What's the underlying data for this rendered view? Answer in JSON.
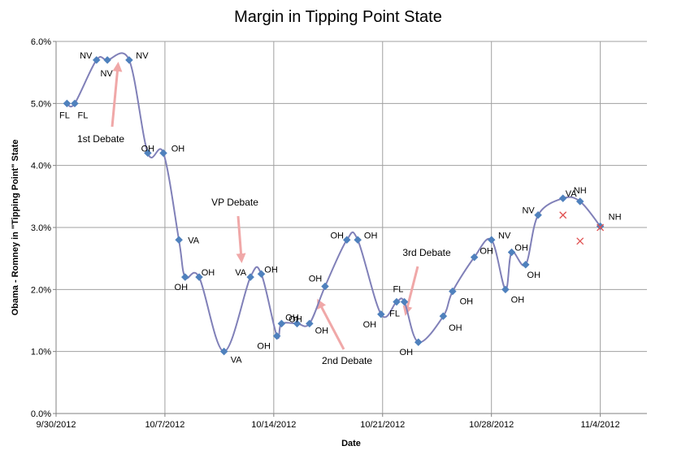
{
  "chart_data": {
    "type": "line",
    "title": "Margin in Tipping Point State",
    "xlabel": "Date",
    "ylabel": "Obama - Romney in \"Tipping Point\" State",
    "x_axis": {
      "start": "2012-09-30",
      "end": "2012-11-07",
      "ticks": [
        {
          "date": "2012-09-30",
          "label": "9/30/2012"
        },
        {
          "date": "2012-10-07",
          "label": "10/7/2012"
        },
        {
          "date": "2012-10-14",
          "label": "10/14/2012"
        },
        {
          "date": "2012-10-21",
          "label": "10/21/2012"
        },
        {
          "date": "2012-10-28",
          "label": "10/28/2012"
        },
        {
          "date": "2012-11-04",
          "label": "11/4/2012"
        }
      ]
    },
    "ylim": [
      0,
      6
    ],
    "y_ticks": [
      "0.0%",
      "1.0%",
      "2.0%",
      "3.0%",
      "4.0%",
      "5.0%",
      "6.0%"
    ],
    "grid": true,
    "colors": {
      "line": "#8080b8",
      "marker": "#4f81bd",
      "cross": "#e05050",
      "arrow": "#f0a8a8",
      "grid": "#a0a0a0"
    },
    "series": [
      {
        "points": [
          {
            "date": "2012-09-30.7",
            "value": 5.0,
            "label": "FL"
          },
          {
            "date": "2012-10-01.2",
            "value": 5.0,
            "label": "FL"
          },
          {
            "date": "2012-10-02.6",
            "value": 5.7,
            "label": "NV"
          },
          {
            "date": "2012-10-03.3",
            "value": 5.7,
            "label": "NV"
          },
          {
            "date": "2012-10-04.7",
            "value": 5.7,
            "label": "NV"
          },
          {
            "date": "2012-10-05.9",
            "value": 4.2,
            "label": "OH"
          },
          {
            "date": "2012-10-06.9",
            "value": 4.2,
            "label": "OH"
          },
          {
            "date": "2012-10-07.9",
            "value": 2.8,
            "label": "VA"
          },
          {
            "date": "2012-10-08.3",
            "value": 2.2,
            "label": "OH"
          },
          {
            "date": "2012-10-09.2",
            "value": 2.2,
            "label": "OH"
          },
          {
            "date": "2012-10-10.8",
            "value": 1.0,
            "label": "VA"
          },
          {
            "date": "2012-10-12.5",
            "value": 2.2,
            "label": "VA"
          },
          {
            "date": "2012-10-13.2",
            "value": 2.25,
            "label": "OH"
          },
          {
            "date": "2012-10-14.2",
            "value": 1.25,
            "label": "OH"
          },
          {
            "date": "2012-10-14.5",
            "value": 1.45,
            "label": "OH"
          },
          {
            "date": "2012-10-15.5",
            "value": 1.45,
            "label": "OH"
          },
          {
            "date": "2012-10-16.3",
            "value": 1.45,
            "label": "OH"
          },
          {
            "date": "2012-10-17.3",
            "value": 2.05,
            "label": "OH"
          },
          {
            "date": "2012-10-18.7",
            "value": 2.8,
            "label": "OH"
          },
          {
            "date": "2012-10-19.4",
            "value": 2.8,
            "label": "OH"
          },
          {
            "date": "2012-10-20.9",
            "value": 1.6,
            "label": "OH"
          },
          {
            "date": "2012-10-21.9",
            "value": 1.8,
            "label": "FL"
          },
          {
            "date": "2012-10-22.4",
            "value": 1.8,
            "label": "FL"
          },
          {
            "date": "2012-10-23.3",
            "value": 1.15,
            "label": "OH"
          },
          {
            "date": "2012-10-24.9",
            "value": 1.57,
            "label": "OH"
          },
          {
            "date": "2012-10-25.5",
            "value": 1.97,
            "label": "OH"
          },
          {
            "date": "2012-10-26.9",
            "value": 2.52,
            "label": "OH"
          },
          {
            "date": "2012-10-28.0",
            "value": 2.8,
            "label": "NV"
          },
          {
            "date": "2012-10-28.9",
            "value": 2.0,
            "label": "OH"
          },
          {
            "date": "2012-10-29.3",
            "value": 2.6,
            "label": "OH"
          },
          {
            "date": "2012-10-30.2",
            "value": 2.4,
            "label": "OH"
          },
          {
            "date": "2012-10-31.0",
            "value": 3.2,
            "label": "NV"
          },
          {
            "date": "2012-11-01.6",
            "value": 3.47,
            "label": "VA"
          },
          {
            "date": "2012-11-02.7",
            "value": 3.42,
            "label": "NH"
          },
          {
            "date": "2012-11-04.0",
            "value": 3.02,
            "label": "NH"
          }
        ]
      }
    ],
    "extra_markers": [
      {
        "date": "2012-11-01.6",
        "value": 3.2
      },
      {
        "date": "2012-11-02.7",
        "value": 2.78
      },
      {
        "date": "2012-11-04.0",
        "value": 3.0
      }
    ],
    "annotations": [
      {
        "text": "1st Debate"
      },
      {
        "text": "VP Debate"
      },
      {
        "text": "2nd Debate"
      },
      {
        "text": "3rd Debate"
      }
    ]
  }
}
